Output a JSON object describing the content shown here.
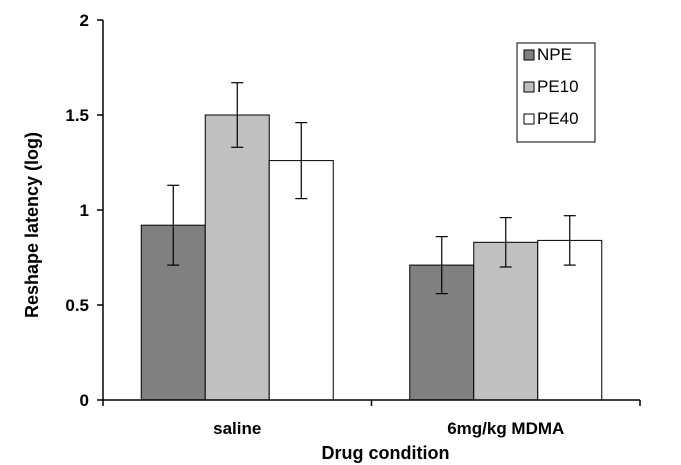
{
  "chart_data": {
    "type": "bar",
    "title": "",
    "xlabel": "Drug condition",
    "ylabel": "Reshape latency (log)",
    "categories": [
      "saline",
      "6mg/kg MDMA"
    ],
    "ylim": [
      0,
      2
    ],
    "yticks": [
      "0",
      "0.5",
      "1",
      "1.5",
      "2"
    ],
    "grid": false,
    "legend_position": "top-right",
    "series": [
      {
        "name": "NPE",
        "color": "#808080",
        "values": [
          0.92,
          0.71
        ],
        "errors": [
          0.21,
          0.15
        ]
      },
      {
        "name": "PE10",
        "color": "#c0c0c0",
        "values": [
          1.5,
          0.83
        ],
        "errors": [
          0.17,
          0.13
        ]
      },
      {
        "name": "PE40",
        "color": "#ffffff",
        "values": [
          1.26,
          0.84
        ],
        "errors": [
          0.2,
          0.13
        ]
      }
    ]
  }
}
